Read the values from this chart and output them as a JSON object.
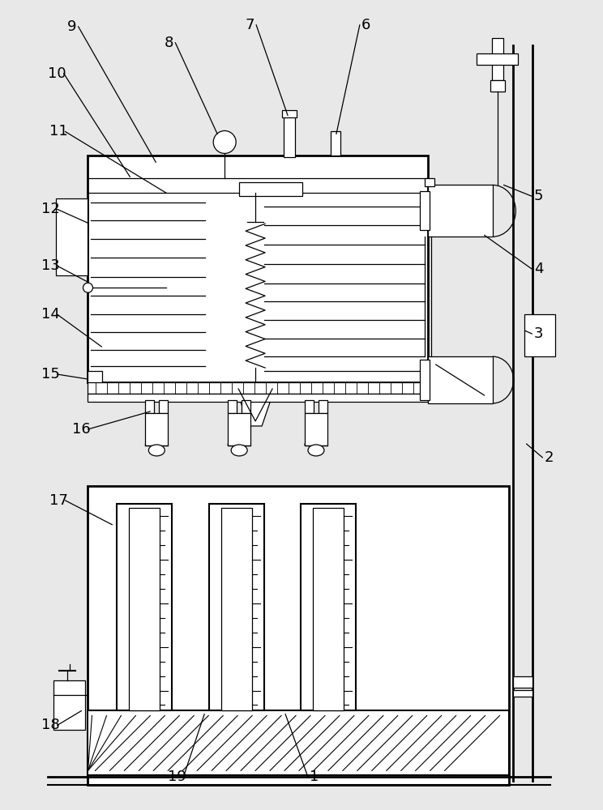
{
  "bg_color": "#e8e8e8",
  "line_color": "#000000",
  "labels": [
    [
      "9",
      88,
      32,
      192,
      200
    ],
    [
      "10",
      70,
      90,
      160,
      218
    ],
    [
      "11",
      72,
      162,
      205,
      238
    ],
    [
      "12",
      62,
      258,
      108,
      275
    ],
    [
      "13",
      62,
      328,
      108,
      348
    ],
    [
      "14",
      62,
      388,
      125,
      428
    ],
    [
      "15",
      62,
      462,
      108,
      468
    ],
    [
      "16",
      100,
      530,
      185,
      508
    ],
    [
      "17",
      72,
      618,
      138,
      648
    ],
    [
      "8",
      208,
      52,
      268,
      165
    ],
    [
      "7",
      308,
      30,
      355,
      142
    ],
    [
      "6",
      452,
      30,
      415,
      165
    ],
    [
      "5",
      665,
      242,
      622,
      228
    ],
    [
      "4",
      665,
      332,
      598,
      290
    ],
    [
      "3",
      665,
      412,
      648,
      408
    ],
    [
      "2",
      678,
      565,
      650,
      548
    ],
    [
      "1",
      388,
      960,
      352,
      882
    ],
    [
      "18",
      62,
      896,
      100,
      878
    ],
    [
      "19",
      218,
      960,
      252,
      882
    ]
  ]
}
